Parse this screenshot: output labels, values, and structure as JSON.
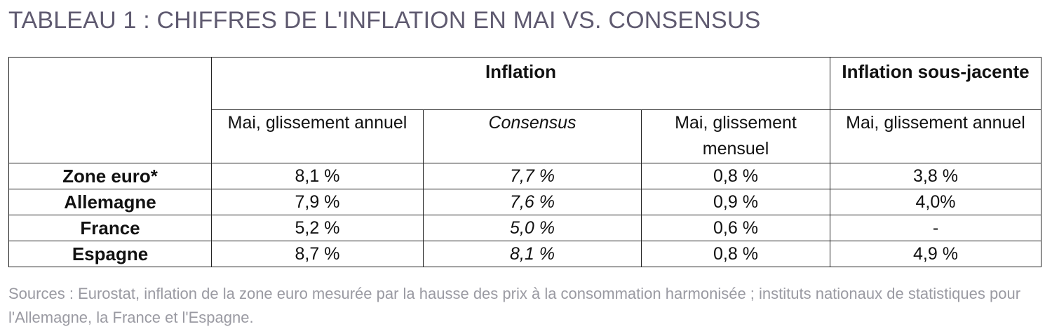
{
  "title": "TABLEAU 1 : CHIFFRES DE L'INFLATION EN MAI VS. CONSENSUS",
  "table": {
    "group_headers": {
      "inflation": "Inflation",
      "core_inflation": "Inflation sous-jacente"
    },
    "sub_headers": [
      "Mai, glissement annuel",
      "Consensus",
      "Mai, glissement mensuel",
      "Mai, glissement annuel"
    ],
    "rows": [
      {
        "label": "Zone euro*",
        "values": [
          "8,1 %",
          "7,7 %",
          "0,8 %",
          "3,8 %"
        ]
      },
      {
        "label": "Allemagne",
        "values": [
          "7,9 %",
          "7,6 %",
          "0,9 %",
          "4,0%"
        ]
      },
      {
        "label": "France",
        "values": [
          "5,2 %",
          "5,0 %",
          "0,6 %",
          "-"
        ]
      },
      {
        "label": "Espagne",
        "values": [
          "8,7 %",
          "8,1 %",
          "0,8 %",
          "4,9 %"
        ]
      }
    ]
  },
  "source_note": "Sources : Eurostat, inflation de la zone euro mesurée par la hausse des prix à la consommation harmonisée ; instituts nationaux de statistiques pour l'Allemagne, la France et l'Espagne.",
  "colors": {
    "title": "#5f5a70",
    "source": "#9a9aa2",
    "border": "#222222"
  }
}
